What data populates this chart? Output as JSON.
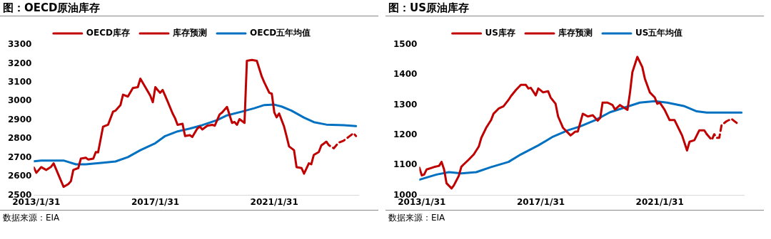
{
  "chart_data": [
    {
      "type": "line",
      "title": "图：OECD原油库存",
      "annotations": [
        "数据来源：EIA"
      ],
      "legend": "top",
      "marker": "none",
      "grid": false,
      "xlim": [
        "2013-01",
        "2023-11-30"
      ],
      "xticks": [
        {
          "value": "2013-01-31",
          "label": "2013/1/31"
        },
        {
          "value": "2017-01-31",
          "label": "2017/1/31"
        },
        {
          "value": "2021-01-31",
          "label": "2021/1/31"
        }
      ],
      "ylim": [
        2500,
        3300
      ],
      "yticks": [
        2500,
        2600,
        2700,
        2800,
        2900,
        3000,
        3100,
        3200,
        3300
      ],
      "series": [
        {
          "name": "OECD库存",
          "color": "#c00000",
          "line_style": "solid",
          "x": [
            "2013-01",
            "2013-02",
            "2013-04",
            "2013-06",
            "2013-08",
            "2013-09",
            "2014-01",
            "2014-03",
            "2014-04",
            "2014-05",
            "2014-07",
            "2014-08",
            "2014-10",
            "2014-11",
            "2015-01",
            "2015-02",
            "2015-03",
            "2015-05",
            "2015-07",
            "2015-09",
            "2015-10",
            "2015-12",
            "2016-01",
            "2016-03",
            "2016-05",
            "2016-07",
            "2016-08",
            "2016-10",
            "2016-12",
            "2017-01",
            "2017-02",
            "2017-03",
            "2017-04",
            "2017-05",
            "2017-06",
            "2017-07",
            "2017-09",
            "2017-10",
            "2017-11",
            "2018-01",
            "2018-02",
            "2018-04",
            "2018-05",
            "2018-07",
            "2018-08",
            "2018-09",
            "2018-11",
            "2019-01",
            "2019-02",
            "2019-04",
            "2019-05",
            "2019-07",
            "2019-09",
            "2019-10",
            "2019-11",
            "2019-12",
            "2020-02",
            "2020-03",
            "2020-05",
            "2020-07",
            "2020-09",
            "2020-10",
            "2020-12",
            "2021-01",
            "2021-02",
            "2021-03",
            "2021-04",
            "2021-06",
            "2021-07",
            "2021-08",
            "2021-10",
            "2021-11",
            "2022-01",
            "2022-02",
            "2022-04",
            "2022-05",
            "2022-06",
            "2022-08",
            "2022-09",
            "2022-11"
          ],
          "values": [
            2648,
            2620,
            2650,
            2635,
            2652,
            2670,
            2545,
            2560,
            2575,
            2635,
            2645,
            2695,
            2700,
            2690,
            2695,
            2730,
            2728,
            2865,
            2875,
            2945,
            2950,
            2980,
            3035,
            3025,
            3070,
            3075,
            3120,
            3075,
            3030,
            2995,
            3075,
            3060,
            3045,
            3060,
            3030,
            3000,
            2935,
            2910,
            2875,
            2880,
            2815,
            2820,
            2810,
            2855,
            2865,
            2850,
            2870,
            2875,
            2870,
            2930,
            2940,
            2970,
            2885,
            2890,
            2875,
            2905,
            2885,
            3215,
            3220,
            3215,
            3130,
            3100,
            3045,
            3040,
            2940,
            2915,
            2935,
            2865,
            2815,
            2760,
            2740,
            2650,
            2645,
            2615,
            2670,
            2665,
            2715,
            2730,
            2765,
            2785
          ]
        },
        {
          "name": "库存预测",
          "color": "#c00000",
          "line_style": "dashed",
          "x": [
            "2022-11",
            "2022-12",
            "2023-02",
            "2023-04",
            "2023-06",
            "2023-08",
            "2023-10",
            "2023-11"
          ],
          "values": [
            2785,
            2767,
            2750,
            2780,
            2790,
            2810,
            2830,
            2815
          ]
        },
        {
          "name": "OECD五年均值",
          "color": "#0070c0",
          "line_style": "solid",
          "x": [
            "2013-01",
            "2013-04",
            "2014-01",
            "2014-06",
            "2014-10",
            "2015-05",
            "2015-10",
            "2016-03",
            "2016-08",
            "2017-02",
            "2017-06",
            "2017-11",
            "2018-04",
            "2018-09",
            "2019-03",
            "2019-07",
            "2020-01",
            "2020-06",
            "2020-10",
            "2021-02",
            "2021-05",
            "2021-09",
            "2022-02",
            "2022-06",
            "2022-11",
            "2023-06",
            "2023-11"
          ],
          "values": [
            2681,
            2685,
            2685,
            2665,
            2665,
            2673,
            2680,
            2703,
            2740,
            2777,
            2815,
            2840,
            2855,
            2873,
            2900,
            2925,
            2945,
            2963,
            2980,
            2982,
            2972,
            2950,
            2913,
            2889,
            2876,
            2873,
            2868
          ]
        }
      ]
    },
    {
      "type": "line",
      "title": "图：US原油库存",
      "annotations": [
        "数据来源：EIA"
      ],
      "legend": "top",
      "marker": "none",
      "grid": false,
      "xlim": [
        "2013-01",
        "2023-11-30"
      ],
      "xticks": [
        {
          "value": "2013-01-31",
          "label": "2013/1/31"
        },
        {
          "value": "2017-01-31",
          "label": "2017/1/31"
        },
        {
          "value": "2021-01-31",
          "label": "2021/1/31"
        }
      ],
      "ylim": [
        1000,
        1500
      ],
      "yticks": [
        1000,
        1100,
        1200,
        1300,
        1400,
        1500
      ],
      "series": [
        {
          "name": "US库存",
          "color": "#c00000",
          "line_style": "solid",
          "x": [
            "2013-01",
            "2013-02",
            "2013-03",
            "2013-04",
            "2013-07",
            "2013-09",
            "2013-10",
            "2013-11",
            "2013-12",
            "2014-02",
            "2014-03",
            "2014-05",
            "2014-06",
            "2014-07",
            "2014-09",
            "2014-11",
            "2015-01",
            "2015-02",
            "2015-04",
            "2015-06",
            "2015-07",
            "2015-09",
            "2015-11",
            "2016-01",
            "2016-02",
            "2016-04",
            "2016-06",
            "2016-08",
            "2016-09",
            "2016-10",
            "2016-12",
            "2017-01",
            "2017-03",
            "2017-05",
            "2017-06",
            "2017-08",
            "2017-09",
            "2017-11",
            "2018-02",
            "2018-04",
            "2018-05",
            "2018-07",
            "2018-09",
            "2018-11",
            "2019-01",
            "2019-02",
            "2019-03",
            "2019-05",
            "2019-07",
            "2019-08",
            "2019-10",
            "2020-01",
            "2020-02",
            "2020-03",
            "2020-05",
            "2020-07",
            "2020-08",
            "2020-10",
            "2020-12",
            "2021-01",
            "2021-02",
            "2021-04",
            "2021-06",
            "2021-08",
            "2021-11",
            "2022-01",
            "2022-02",
            "2022-04",
            "2022-06",
            "2022-08",
            "2022-09"
          ],
          "values": [
            1092,
            1066,
            1069,
            1086,
            1094,
            1098,
            1111,
            1086,
            1040,
            1023,
            1033,
            1065,
            1095,
            1103,
            1119,
            1136,
            1162,
            1191,
            1224,
            1250,
            1271,
            1288,
            1296,
            1317,
            1330,
            1350,
            1367,
            1367,
            1355,
            1357,
            1332,
            1355,
            1342,
            1346,
            1325,
            1304,
            1262,
            1224,
            1199,
            1212,
            1212,
            1271,
            1262,
            1266,
            1248,
            1258,
            1308,
            1308,
            1300,
            1285,
            1300,
            1284,
            1342,
            1409,
            1460,
            1426,
            1388,
            1342,
            1325,
            1304,
            1308,
            1284,
            1250,
            1250,
            1199,
            1149,
            1178,
            1183,
            1216,
            1216,
            1203
          ]
        },
        {
          "name": "库存预测",
          "color": "#c00000",
          "line_style": "dashed",
          "x": [
            "2022-09",
            "2022-11",
            "2022-12",
            "2023-01",
            "2023-02",
            "2023-03",
            "2023-05",
            "2023-07",
            "2023-09",
            "2023-10"
          ],
          "values": [
            1203,
            1184,
            1203,
            1191,
            1191,
            1233,
            1246,
            1254,
            1241,
            1233
          ]
        },
        {
          "name": "US五年均值",
          "color": "#0070c0",
          "line_style": "solid",
          "x": [
            "2013-01",
            "2013-08",
            "2014-01",
            "2014-06",
            "2014-12",
            "2015-06",
            "2016-01",
            "2016-06",
            "2017-01",
            "2017-07",
            "2018-01",
            "2018-06",
            "2018-12",
            "2019-06",
            "2019-12",
            "2020-06",
            "2020-12",
            "2021-05",
            "2021-12",
            "2022-05",
            "2022-09",
            "2023-03",
            "2023-11"
          ],
          "values": [
            1052,
            1069,
            1077,
            1073,
            1077,
            1094,
            1111,
            1136,
            1166,
            1195,
            1216,
            1229,
            1250,
            1276,
            1292,
            1308,
            1313,
            1308,
            1296,
            1279,
            1275,
            1275,
            1275
          ]
        }
      ]
    }
  ]
}
